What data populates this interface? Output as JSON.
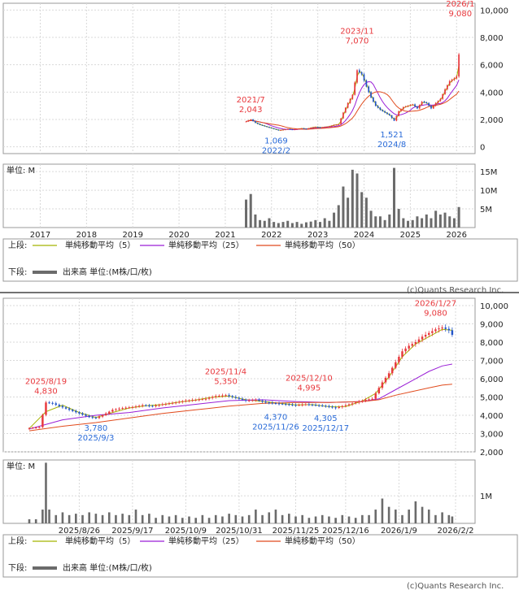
{
  "colors": {
    "up": "#e8383d",
    "down": "#2456c8",
    "ma5": "#a5b300",
    "ma25": "#9a1fd6",
    "ma50": "#e14b1d",
    "volume": "#6b6b6b",
    "high_label": "#e8383d",
    "low_label": "#2a6bd8",
    "grid": "#d9d9d9",
    "separator": "#444444"
  },
  "legend": {
    "upper_label": "上段:",
    "lower_label": "下段:",
    "ma5": "単純移動平均（5）",
    "ma25": "単純移動平均（25）",
    "ma50": "単純移動平均（50）",
    "volume": "出来高 単位:(M株/口/枚)"
  },
  "copyright": "(c)Quants Research Inc.",
  "chart_data": [
    {
      "type": "candlestick",
      "title": "",
      "ylim": [
        -500,
        10500
      ],
      "y_ticks": [
        0,
        2000,
        4000,
        6000,
        8000,
        10000
      ],
      "y_tick_labels": [
        "0",
        "2,000",
        "4,000",
        "6,000",
        "8,000",
        "10,000"
      ],
      "x_range": [
        2016.2,
        2026.4
      ],
      "x_ticks": [
        2017,
        2018,
        2019,
        2020,
        2021,
        2022,
        2023,
        2024,
        2025,
        2026
      ],
      "x_tick_labels": [
        "2017",
        "2018",
        "2019",
        "2020",
        "2021",
        "2022",
        "2023",
        "2024",
        "2025",
        "2026"
      ],
      "grid": true,
      "close_series": [
        [
          2021.45,
          1850
        ],
        [
          2021.55,
          2000
        ],
        [
          2021.65,
          1750
        ],
        [
          2021.75,
          1600
        ],
        [
          2021.85,
          1500
        ],
        [
          2021.95,
          1400
        ],
        [
          2022.05,
          1300
        ],
        [
          2022.15,
          1200
        ],
        [
          2022.25,
          1250
        ],
        [
          2022.35,
          1300
        ],
        [
          2022.45,
          1250
        ],
        [
          2022.55,
          1300
        ],
        [
          2022.65,
          1350
        ],
        [
          2022.75,
          1300
        ],
        [
          2022.85,
          1400
        ],
        [
          2022.95,
          1450
        ],
        [
          2023.05,
          1400
        ],
        [
          2023.15,
          1450
        ],
        [
          2023.25,
          1500
        ],
        [
          2023.35,
          1600
        ],
        [
          2023.45,
          1650
        ],
        [
          2023.55,
          2500
        ],
        [
          2023.65,
          3200
        ],
        [
          2023.75,
          3800
        ],
        [
          2023.85,
          5600
        ],
        [
          2023.95,
          5300
        ],
        [
          2024.05,
          4400
        ],
        [
          2024.15,
          3600
        ],
        [
          2024.25,
          3000
        ],
        [
          2024.35,
          2700
        ],
        [
          2024.45,
          2500
        ],
        [
          2024.55,
          2300
        ],
        [
          2024.65,
          1900
        ],
        [
          2024.75,
          2600
        ],
        [
          2024.85,
          2900
        ],
        [
          2024.95,
          3000
        ],
        [
          2025.05,
          3100
        ],
        [
          2025.15,
          2800
        ],
        [
          2025.25,
          3300
        ],
        [
          2025.35,
          3200
        ],
        [
          2025.45,
          2800
        ],
        [
          2025.55,
          3200
        ],
        [
          2025.65,
          3500
        ],
        [
          2025.75,
          4200
        ],
        [
          2025.85,
          4800
        ],
        [
          2025.95,
          5000
        ],
        [
          2026.02,
          5200
        ],
        [
          2026.08,
          8300
        ]
      ],
      "volume_series": [
        [
          2021.45,
          7.5
        ],
        [
          2021.55,
          9.0
        ],
        [
          2021.65,
          3.5
        ],
        [
          2021.75,
          2.0
        ],
        [
          2021.85,
          1.8
        ],
        [
          2021.95,
          2.5
        ],
        [
          2022.05,
          1.5
        ],
        [
          2022.15,
          1.2
        ],
        [
          2022.25,
          1.5
        ],
        [
          2022.35,
          1.8
        ],
        [
          2022.45,
          1.2
        ],
        [
          2022.55,
          1.5
        ],
        [
          2022.65,
          1.0
        ],
        [
          2022.75,
          1.4
        ],
        [
          2022.85,
          1.6
        ],
        [
          2022.95,
          2.0
        ],
        [
          2023.05,
          1.5
        ],
        [
          2023.15,
          2.5
        ],
        [
          2023.25,
          1.8
        ],
        [
          2023.35,
          4.0
        ],
        [
          2023.45,
          6.0
        ],
        [
          2023.55,
          11.0
        ],
        [
          2023.65,
          8.0
        ],
        [
          2023.75,
          15.5
        ],
        [
          2023.85,
          14.5
        ],
        [
          2023.95,
          9.5
        ],
        [
          2024.05,
          8.0
        ],
        [
          2024.15,
          4.5
        ],
        [
          2024.25,
          3.0
        ],
        [
          2024.35,
          3.0
        ],
        [
          2024.45,
          2.0
        ],
        [
          2024.55,
          3.5
        ],
        [
          2024.65,
          16.0
        ],
        [
          2024.75,
          5.0
        ],
        [
          2024.85,
          2.5
        ],
        [
          2024.95,
          1.8
        ],
        [
          2025.05,
          2.0
        ],
        [
          2025.15,
          3.0
        ],
        [
          2025.25,
          2.5
        ],
        [
          2025.35,
          3.5
        ],
        [
          2025.45,
          2.5
        ],
        [
          2025.55,
          4.5
        ],
        [
          2025.65,
          3.5
        ],
        [
          2025.75,
          4.0
        ],
        [
          2025.85,
          3.0
        ],
        [
          2025.95,
          2.5
        ],
        [
          2026.05,
          5.5
        ]
      ],
      "volume_ylim": [
        0,
        17
      ],
      "volume_ticks": [
        5,
        10,
        15
      ],
      "volume_tick_labels": [
        "5M",
        "10M",
        "15M"
      ],
      "volume_unit": "単位: M",
      "annotations": [
        {
          "x": 2021.55,
          "y": 2043,
          "date": "2021/7",
          "value": "2,043",
          "kind": "high"
        },
        {
          "x": 2022.1,
          "y": 1069,
          "date": "2022/2",
          "value": "1,069",
          "kind": "low"
        },
        {
          "x": 2023.85,
          "y": 7070,
          "date": "2023/11",
          "value": "7,070",
          "kind": "high"
        },
        {
          "x": 2024.6,
          "y": 1521,
          "date": "2024/8",
          "value": "1,521",
          "kind": "low"
        },
        {
          "x": 2026.08,
          "y": 9080,
          "date": "2026/1",
          "value": "9,080",
          "kind": "high"
        }
      ]
    },
    {
      "type": "candlestick",
      "title": "",
      "ylim": [
        2000,
        10400
      ],
      "y_ticks": [
        2000,
        3000,
        4000,
        5000,
        6000,
        7000,
        8000,
        9000,
        10000
      ],
      "y_tick_labels": [
        "2,000",
        "3,000",
        "4,000",
        "5,000",
        "6,000",
        "7,000",
        "8,000",
        "9,000",
        "10,000"
      ],
      "x_ticks": [
        "2025/8/26",
        "2025/9/17",
        "2025/10/9",
        "2025/10/31",
        "2025/11/25",
        "2025/12/16",
        "2026/1/9",
        "2026/2/2"
      ],
      "x_tick_index": [
        15,
        31,
        47,
        63,
        80,
        95,
        111,
        128
      ],
      "n_days": 128,
      "grid": true,
      "close_series": [
        [
          0,
          3300
        ],
        [
          3,
          3350
        ],
        [
          5,
          4700
        ],
        [
          7,
          4650
        ],
        [
          9,
          4500
        ],
        [
          12,
          4300
        ],
        [
          15,
          4100
        ],
        [
          18,
          3900
        ],
        [
          20,
          3850
        ],
        [
          22,
          4000
        ],
        [
          25,
          4300
        ],
        [
          28,
          4400
        ],
        [
          31,
          4450
        ],
        [
          34,
          4550
        ],
        [
          37,
          4500
        ],
        [
          40,
          4600
        ],
        [
          44,
          4700
        ],
        [
          47,
          4800
        ],
        [
          50,
          4850
        ],
        [
          53,
          4900
        ],
        [
          56,
          5050
        ],
        [
          59,
          5100
        ],
        [
          62,
          4950
        ],
        [
          65,
          4800
        ],
        [
          68,
          4850
        ],
        [
          71,
          4700
        ],
        [
          74,
          4650
        ],
        [
          77,
          4600
        ],
        [
          80,
          4550
        ],
        [
          83,
          4600
        ],
        [
          86,
          4550
        ],
        [
          89,
          4500
        ],
        [
          92,
          4400
        ],
        [
          95,
          4550
        ],
        [
          98,
          4700
        ],
        [
          101,
          4850
        ],
        [
          103,
          4900
        ],
        [
          106,
          5800
        ],
        [
          108,
          6300
        ],
        [
          110,
          6900
        ],
        [
          112,
          7500
        ],
        [
          114,
          7800
        ],
        [
          116,
          8000
        ],
        [
          118,
          8300
        ],
        [
          120,
          8500
        ],
        [
          122,
          8700
        ],
        [
          124,
          8800
        ],
        [
          126,
          8650
        ],
        [
          127,
          8400
        ]
      ],
      "ma5": [
        [
          0,
          3280
        ],
        [
          5,
          4200
        ],
        [
          10,
          4550
        ],
        [
          15,
          4150
        ],
        [
          20,
          3880
        ],
        [
          25,
          4150
        ],
        [
          30,
          4400
        ],
        [
          35,
          4520
        ],
        [
          40,
          4580
        ],
        [
          45,
          4720
        ],
        [
          50,
          4830
        ],
        [
          55,
          4990
        ],
        [
          60,
          5050
        ],
        [
          65,
          4850
        ],
        [
          70,
          4760
        ],
        [
          75,
          4660
        ],
        [
          80,
          4570
        ],
        [
          85,
          4580
        ],
        [
          90,
          4470
        ],
        [
          95,
          4480
        ],
        [
          100,
          4780
        ],
        [
          104,
          5200
        ],
        [
          108,
          6100
        ],
        [
          112,
          7200
        ],
        [
          116,
          7900
        ],
        [
          120,
          8300
        ],
        [
          124,
          8700
        ],
        [
          127,
          8650
        ]
      ],
      "ma25": [
        [
          0,
          3250
        ],
        [
          10,
          3750
        ],
        [
          20,
          4000
        ],
        [
          30,
          4150
        ],
        [
          40,
          4400
        ],
        [
          50,
          4600
        ],
        [
          60,
          4800
        ],
        [
          70,
          4850
        ],
        [
          80,
          4750
        ],
        [
          90,
          4700
        ],
        [
          100,
          4750
        ],
        [
          105,
          4900
        ],
        [
          110,
          5400
        ],
        [
          115,
          5900
        ],
        [
          120,
          6400
        ],
        [
          124,
          6700
        ],
        [
          127,
          6800
        ]
      ],
      "ma50": [
        [
          0,
          3150
        ],
        [
          10,
          3400
        ],
        [
          20,
          3600
        ],
        [
          30,
          3850
        ],
        [
          40,
          4100
        ],
        [
          50,
          4300
        ],
        [
          60,
          4500
        ],
        [
          70,
          4650
        ],
        [
          80,
          4700
        ],
        [
          90,
          4700
        ],
        [
          100,
          4750
        ],
        [
          105,
          4850
        ],
        [
          110,
          5100
        ],
        [
          115,
          5300
        ],
        [
          120,
          5500
        ],
        [
          124,
          5650
        ],
        [
          127,
          5700
        ]
      ],
      "volume_series": [
        [
          0,
          0.15
        ],
        [
          2,
          0.15
        ],
        [
          4,
          0.5
        ],
        [
          5,
          2.2
        ],
        [
          6,
          0.5
        ],
        [
          8,
          0.3
        ],
        [
          10,
          0.4
        ],
        [
          12,
          0.3
        ],
        [
          14,
          0.35
        ],
        [
          16,
          0.3
        ],
        [
          18,
          0.4
        ],
        [
          20,
          0.35
        ],
        [
          22,
          0.3
        ],
        [
          24,
          0.4
        ],
        [
          26,
          0.3
        ],
        [
          28,
          0.35
        ],
        [
          30,
          0.3
        ],
        [
          32,
          0.5
        ],
        [
          34,
          0.3
        ],
        [
          36,
          0.35
        ],
        [
          38,
          0.2
        ],
        [
          40,
          0.3
        ],
        [
          42,
          0.25
        ],
        [
          44,
          0.3
        ],
        [
          46,
          0.2
        ],
        [
          48,
          0.25
        ],
        [
          50,
          0.2
        ],
        [
          52,
          0.3
        ],
        [
          54,
          0.2
        ],
        [
          56,
          0.3
        ],
        [
          58,
          0.25
        ],
        [
          60,
          0.35
        ],
        [
          62,
          0.3
        ],
        [
          64,
          0.25
        ],
        [
          66,
          0.3
        ],
        [
          68,
          0.5
        ],
        [
          70,
          0.3
        ],
        [
          72,
          0.4
        ],
        [
          74,
          0.5
        ],
        [
          76,
          0.3
        ],
        [
          78,
          0.35
        ],
        [
          80,
          0.25
        ],
        [
          82,
          0.3
        ],
        [
          84,
          0.2
        ],
        [
          86,
          0.25
        ],
        [
          88,
          0.3
        ],
        [
          90,
          0.25
        ],
        [
          92,
          0.2
        ],
        [
          94,
          0.3
        ],
        [
          96,
          0.25
        ],
        [
          98,
          0.2
        ],
        [
          100,
          0.3
        ],
        [
          102,
          0.3
        ],
        [
          104,
          0.5
        ],
        [
          106,
          0.9
        ],
        [
          108,
          0.6
        ],
        [
          110,
          0.5
        ],
        [
          112,
          0.3
        ],
        [
          114,
          0.5
        ],
        [
          116,
          0.8
        ],
        [
          118,
          0.6
        ],
        [
          120,
          0.5
        ],
        [
          122,
          0.3
        ],
        [
          124,
          0.4
        ],
        [
          126,
          0.3
        ],
        [
          127,
          0.25
        ]
      ],
      "volume_ylim": [
        0,
        2.3
      ],
      "volume_ticks": [
        1
      ],
      "volume_tick_labels": [
        "1M"
      ],
      "volume_unit": "単位: M",
      "annotations": [
        {
          "x": 5,
          "y": 4830,
          "date": "2025/8/19",
          "value": "4,830",
          "kind": "high"
        },
        {
          "x": 20,
          "y": 3780,
          "date": "2025/9/3",
          "value": "3,780",
          "kind": "low"
        },
        {
          "x": 59,
          "y": 5350,
          "date": "2025/11/4",
          "value": "5,350",
          "kind": "high"
        },
        {
          "x": 74,
          "y": 4370,
          "date": "2025/11/26",
          "value": "4,370",
          "kind": "low"
        },
        {
          "x": 84,
          "y": 4995,
          "date": "2025/12/10",
          "value": "4,995",
          "kind": "high"
        },
        {
          "x": 89,
          "y": 4305,
          "date": "2025/12/17",
          "value": "4,305",
          "kind": "low"
        },
        {
          "x": 122,
          "y": 9080,
          "date": "2026/1/27",
          "value": "9,080",
          "kind": "high"
        }
      ]
    }
  ]
}
